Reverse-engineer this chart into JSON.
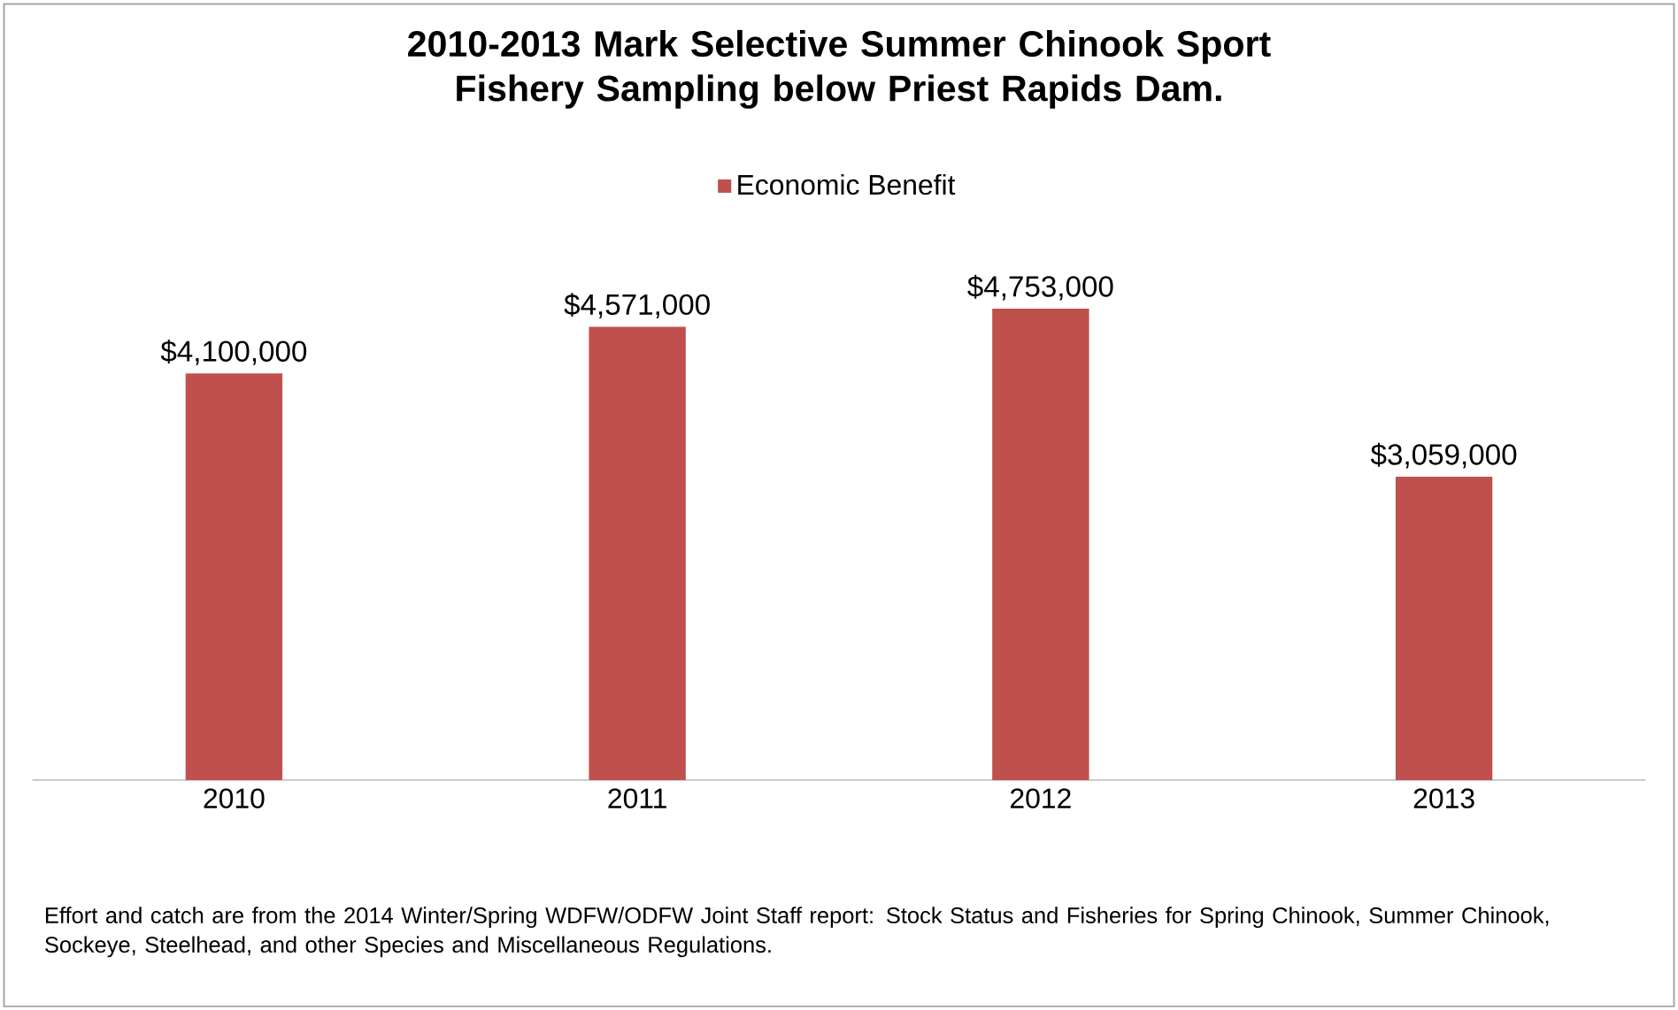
{
  "chart_data": {
    "type": "bar",
    "title": "2010-2013 Mark Selective Summer Chinook Sport Fishery Sampling below Priest Rapids Dam.",
    "categories": [
      "2010",
      "2011",
      "2012",
      "2013"
    ],
    "series": [
      {
        "name": "Economic Benefit",
        "color": "#c0504d",
        "values": [
          4100000,
          4571000,
          4753000,
          3059000
        ],
        "value_labels": [
          "$4,100,000",
          "$4,571,000",
          "$4,753,000",
          "$3,059,000"
        ]
      }
    ],
    "tick_labels": "x",
    "legend": "top",
    "grid": false,
    "annotations": [
      "Effort and catch are from the 2014 Winter/Spring WDFW/ODFW Joint Staff report: Stock Status and Fisheries for Spring Chinook, Summer Chinook, Sockeye, Steelhead, and other Species and Miscellaneous Regulations."
    ]
  }
}
